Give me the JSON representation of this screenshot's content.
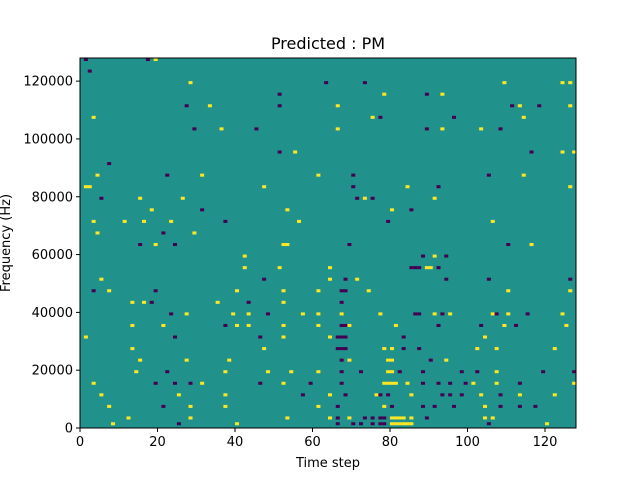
{
  "chart_data": {
    "type": "heatmap",
    "title": "Predicted : PM",
    "xlabel": "Time step",
    "ylabel": "Frequency (Hz)",
    "xlim": [
      0,
      128
    ],
    "ylim": [
      0,
      128000
    ],
    "x_ticks": [
      0,
      20,
      40,
      60,
      80,
      100,
      120
    ],
    "y_ticks": [
      0,
      20000,
      40000,
      60000,
      80000,
      100000,
      120000
    ],
    "x_tick_labels": [
      "0",
      "20",
      "40",
      "60",
      "80",
      "100",
      "120"
    ],
    "y_tick_labels": [
      "0",
      "20000",
      "40000",
      "60000",
      "80000",
      "100000",
      "120000"
    ],
    "n_time_steps": 128,
    "n_freq_bins": 128,
    "freq_bin_hz": 1000,
    "background_value": 0,
    "colormap": "viridis",
    "colors": {
      "-1": "#440154",
      "0": "#21918c",
      "1": "#fde725"
    },
    "cells": [
      [
        1,
        127,
        -1
      ],
      [
        2,
        123,
        -1
      ],
      [
        17,
        127,
        -1
      ],
      [
        19,
        127,
        1
      ],
      [
        28,
        119,
        1
      ],
      [
        63,
        119,
        -1
      ],
      [
        73,
        119,
        -1
      ],
      [
        109,
        119,
        1
      ],
      [
        124,
        119,
        1
      ],
      [
        126,
        119,
        1
      ],
      [
        51,
        115,
        -1
      ],
      [
        78,
        115,
        1
      ],
      [
        89,
        115,
        -1
      ],
      [
        93,
        115,
        1
      ],
      [
        27,
        111,
        -1
      ],
      [
        33,
        111,
        1
      ],
      [
        51,
        111,
        -1
      ],
      [
        66,
        111,
        1
      ],
      [
        111,
        111,
        -1
      ],
      [
        113,
        111,
        1
      ],
      [
        118,
        111,
        -1
      ],
      [
        126,
        111,
        1
      ],
      [
        3,
        107,
        1
      ],
      [
        75,
        107,
        1
      ],
      [
        77,
        107,
        -1
      ],
      [
        96,
        107,
        -1
      ],
      [
        114,
        107,
        1
      ],
      [
        29,
        103,
        -1
      ],
      [
        36,
        103,
        1
      ],
      [
        45,
        103,
        -1
      ],
      [
        66,
        103,
        1
      ],
      [
        89,
        103,
        -1
      ],
      [
        93,
        103,
        1
      ],
      [
        103,
        103,
        1
      ],
      [
        108,
        103,
        -1
      ],
      [
        51,
        95,
        -1
      ],
      [
        55,
        95,
        1
      ],
      [
        116,
        95,
        -1
      ],
      [
        124,
        95,
        1
      ],
      [
        127,
        95,
        1
      ],
      [
        7,
        91,
        -1
      ],
      [
        4,
        87,
        1
      ],
      [
        22,
        87,
        -1
      ],
      [
        31,
        87,
        1
      ],
      [
        61,
        87,
        1
      ],
      [
        70,
        87,
        -1
      ],
      [
        105,
        87,
        -1
      ],
      [
        114,
        87,
        1
      ],
      [
        1,
        83,
        1
      ],
      [
        2,
        83,
        1
      ],
      [
        47,
        83,
        1
      ],
      [
        70,
        83,
        -1
      ],
      [
        84,
        83,
        1
      ],
      [
        92,
        83,
        -1
      ],
      [
        126,
        83,
        1
      ],
      [
        5,
        79,
        -1
      ],
      [
        15,
        79,
        1
      ],
      [
        26,
        79,
        1
      ],
      [
        71,
        79,
        -1
      ],
      [
        73,
        79,
        1
      ],
      [
        75,
        79,
        -1
      ],
      [
        91,
        79,
        1
      ],
      [
        18,
        75,
        1
      ],
      [
        31,
        75,
        -1
      ],
      [
        53,
        75,
        1
      ],
      [
        80,
        75,
        1
      ],
      [
        85,
        75,
        -1
      ],
      [
        3,
        71,
        1
      ],
      [
        11,
        71,
        1
      ],
      [
        16,
        71,
        1
      ],
      [
        23,
        71,
        1
      ],
      [
        37,
        71,
        -1
      ],
      [
        56,
        71,
        1
      ],
      [
        79,
        71,
        -1
      ],
      [
        106,
        71,
        1
      ],
      [
        4,
        67,
        1
      ],
      [
        21,
        67,
        -1
      ],
      [
        29,
        67,
        1
      ],
      [
        15,
        63,
        -1
      ],
      [
        19,
        63,
        1
      ],
      [
        24,
        63,
        -1
      ],
      [
        52,
        63,
        1
      ],
      [
        53,
        63,
        1
      ],
      [
        69,
        63,
        -1
      ],
      [
        110,
        63,
        -1
      ],
      [
        116,
        63,
        1
      ],
      [
        42,
        59,
        1
      ],
      [
        88,
        59,
        -1
      ],
      [
        91,
        59,
        1
      ],
      [
        94,
        59,
        -1
      ],
      [
        42,
        55,
        1
      ],
      [
        51,
        55,
        1
      ],
      [
        64,
        55,
        1
      ],
      [
        85,
        55,
        -1
      ],
      [
        86,
        55,
        -1
      ],
      [
        87,
        55,
        -1
      ],
      [
        89,
        55,
        1
      ],
      [
        90,
        55,
        1
      ],
      [
        92,
        55,
        -1
      ],
      [
        5,
        51,
        1
      ],
      [
        47,
        51,
        -1
      ],
      [
        64,
        51,
        1
      ],
      [
        68,
        51,
        -1
      ],
      [
        71,
        51,
        1
      ],
      [
        94,
        51,
        -1
      ],
      [
        105,
        51,
        -1
      ],
      [
        126,
        51,
        -1
      ],
      [
        3,
        47,
        -1
      ],
      [
        7,
        47,
        1
      ],
      [
        19,
        47,
        -1
      ],
      [
        40,
        47,
        1
      ],
      [
        52,
        47,
        1
      ],
      [
        61,
        47,
        1
      ],
      [
        67,
        47,
        -1
      ],
      [
        68,
        47,
        -1
      ],
      [
        74,
        47,
        1
      ],
      [
        110,
        47,
        1
      ],
      [
        126,
        47,
        1
      ],
      [
        13,
        43,
        1
      ],
      [
        16,
        43,
        1
      ],
      [
        18,
        43,
        -1
      ],
      [
        35,
        43,
        1
      ],
      [
        43,
        43,
        -1
      ],
      [
        52,
        43,
        1
      ],
      [
        67,
        43,
        -1
      ],
      [
        23,
        39,
        -1
      ],
      [
        27,
        39,
        1
      ],
      [
        39,
        39,
        1
      ],
      [
        43,
        39,
        1
      ],
      [
        48,
        39,
        -1
      ],
      [
        57,
        39,
        1
      ],
      [
        61,
        39,
        1
      ],
      [
        67,
        39,
        1
      ],
      [
        77,
        39,
        1
      ],
      [
        86,
        39,
        -1
      ],
      [
        87,
        39,
        -1
      ],
      [
        91,
        39,
        1
      ],
      [
        93,
        39,
        -1
      ],
      [
        95,
        39,
        1
      ],
      [
        106,
        39,
        1
      ],
      [
        107,
        39,
        -1
      ],
      [
        110,
        39,
        1
      ],
      [
        115,
        39,
        -1
      ],
      [
        124,
        39,
        1
      ],
      [
        13,
        35,
        1
      ],
      [
        21,
        35,
        1
      ],
      [
        37,
        35,
        -1
      ],
      [
        40,
        35,
        1
      ],
      [
        43,
        35,
        1
      ],
      [
        52,
        35,
        1
      ],
      [
        61,
        35,
        1
      ],
      [
        67,
        35,
        -1
      ],
      [
        68,
        35,
        -1
      ],
      [
        69,
        35,
        1
      ],
      [
        81,
        35,
        1
      ],
      [
        92,
        35,
        -1
      ],
      [
        103,
        35,
        -1
      ],
      [
        109,
        35,
        1
      ],
      [
        112,
        35,
        -1
      ],
      [
        125,
        35,
        1
      ],
      [
        1,
        31,
        1
      ],
      [
        24,
        31,
        -1
      ],
      [
        46,
        31,
        -1
      ],
      [
        52,
        31,
        1
      ],
      [
        64,
        31,
        1
      ],
      [
        66,
        31,
        -1
      ],
      [
        67,
        31,
        -1
      ],
      [
        68,
        31,
        -1
      ],
      [
        83,
        31,
        -1
      ],
      [
        104,
        31,
        1
      ],
      [
        13,
        27,
        1
      ],
      [
        47,
        27,
        1
      ],
      [
        66,
        27,
        -1
      ],
      [
        67,
        27,
        -1
      ],
      [
        68,
        27,
        -1
      ],
      [
        78,
        27,
        1
      ],
      [
        80,
        27,
        1
      ],
      [
        83,
        27,
        -1
      ],
      [
        87,
        27,
        -1
      ],
      [
        102,
        27,
        1
      ],
      [
        107,
        27,
        1
      ],
      [
        122,
        27,
        1
      ],
      [
        15,
        23,
        1
      ],
      [
        27,
        23,
        1
      ],
      [
        38,
        23,
        1
      ],
      [
        67,
        23,
        -1
      ],
      [
        69,
        23,
        1
      ],
      [
        79,
        23,
        1
      ],
      [
        80,
        23,
        1
      ],
      [
        90,
        23,
        -1
      ],
      [
        94,
        23,
        1
      ],
      [
        14,
        19,
        1
      ],
      [
        22,
        19,
        -1
      ],
      [
        37,
        19,
        1
      ],
      [
        48,
        19,
        1
      ],
      [
        54,
        19,
        1
      ],
      [
        61,
        19,
        1
      ],
      [
        67,
        19,
        -1
      ],
      [
        72,
        19,
        -1
      ],
      [
        79,
        19,
        1
      ],
      [
        80,
        19,
        1
      ],
      [
        82,
        19,
        -1
      ],
      [
        88,
        19,
        -1
      ],
      [
        98,
        19,
        -1
      ],
      [
        102,
        19,
        -1
      ],
      [
        107,
        19,
        1
      ],
      [
        119,
        19,
        -1
      ],
      [
        127,
        19,
        -1
      ],
      [
        3,
        15,
        1
      ],
      [
        19,
        15,
        -1
      ],
      [
        24,
        15,
        -1
      ],
      [
        28,
        15,
        -1
      ],
      [
        31,
        15,
        1
      ],
      [
        46,
        15,
        -1
      ],
      [
        52,
        15,
        1
      ],
      [
        59,
        15,
        -1
      ],
      [
        67,
        15,
        -1
      ],
      [
        78,
        15,
        1
      ],
      [
        79,
        15,
        1
      ],
      [
        80,
        15,
        1
      ],
      [
        81,
        15,
        1
      ],
      [
        84,
        15,
        1
      ],
      [
        88,
        15,
        -1
      ],
      [
        92,
        15,
        -1
      ],
      [
        95,
        15,
        -1
      ],
      [
        99,
        15,
        -1
      ],
      [
        101,
        15,
        1
      ],
      [
        107,
        15,
        1
      ],
      [
        113,
        15,
        -1
      ],
      [
        127,
        15,
        1
      ],
      [
        5,
        11,
        1
      ],
      [
        25,
        11,
        1
      ],
      [
        37,
        11,
        1
      ],
      [
        57,
        11,
        -1
      ],
      [
        64,
        11,
        1
      ],
      [
        68,
        11,
        -1
      ],
      [
        76,
        11,
        1
      ],
      [
        77,
        11,
        -1
      ],
      [
        79,
        11,
        -1
      ],
      [
        85,
        11,
        1
      ],
      [
        93,
        11,
        -1
      ],
      [
        95,
        11,
        -1
      ],
      [
        98,
        11,
        -1
      ],
      [
        103,
        11,
        1
      ],
      [
        108,
        11,
        -1
      ],
      [
        113,
        11,
        1
      ],
      [
        122,
        11,
        1
      ],
      [
        7,
        7,
        1
      ],
      [
        21,
        7,
        -1
      ],
      [
        28,
        7,
        1
      ],
      [
        37,
        7,
        1
      ],
      [
        61,
        7,
        1
      ],
      [
        66,
        7,
        -1
      ],
      [
        78,
        7,
        1
      ],
      [
        80,
        7,
        -1
      ],
      [
        88,
        7,
        -1
      ],
      [
        91,
        7,
        -1
      ],
      [
        96,
        7,
        -1
      ],
      [
        104,
        7,
        1
      ],
      [
        108,
        7,
        -1
      ],
      [
        113,
        7,
        -1
      ],
      [
        117,
        7,
        -1
      ],
      [
        12,
        3,
        1
      ],
      [
        28,
        3,
        1
      ],
      [
        53,
        3,
        1
      ],
      [
        64,
        3,
        1
      ],
      [
        66,
        3,
        -1
      ],
      [
        69,
        3,
        1
      ],
      [
        73,
        3,
        -1
      ],
      [
        75,
        3,
        -1
      ],
      [
        77,
        3,
        -1
      ],
      [
        78,
        3,
        -1
      ],
      [
        80,
        3,
        1
      ],
      [
        81,
        3,
        1
      ],
      [
        82,
        3,
        1
      ],
      [
        83,
        3,
        1
      ],
      [
        85,
        3,
        1
      ],
      [
        89,
        3,
        -1
      ],
      [
        104,
        3,
        1
      ],
      [
        106,
        3,
        1
      ],
      [
        8,
        1,
        1
      ],
      [
        25,
        1,
        -1
      ],
      [
        40,
        1,
        1
      ],
      [
        66,
        1,
        -1
      ],
      [
        70,
        1,
        -1
      ],
      [
        72,
        1,
        -1
      ],
      [
        75,
        1,
        -1
      ],
      [
        77,
        1,
        -1
      ],
      [
        78,
        1,
        -1
      ],
      [
        80,
        1,
        1
      ],
      [
        81,
        1,
        1
      ],
      [
        82,
        1,
        1
      ],
      [
        83,
        1,
        1
      ],
      [
        84,
        1,
        1
      ],
      [
        85,
        1,
        1
      ],
      [
        105,
        1,
        -1
      ],
      [
        120,
        1,
        1
      ]
    ]
  }
}
